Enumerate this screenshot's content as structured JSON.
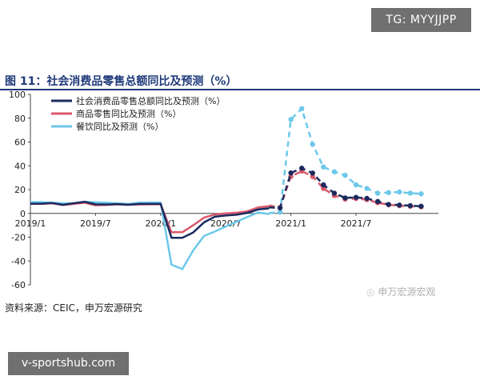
{
  "overlays": {
    "tg_handle": "TG: MYYJJPP",
    "site_handle": "v-sportshub.com",
    "wechat_watermark": "申万宏源宏观"
  },
  "source_note": "资料来源：CEIC，申万宏源研究",
  "colors": {
    "title": "#1f3a7a",
    "retail_total": "#1b2a5e",
    "goods": "#d9596a",
    "catering": "#6cc8ea"
  },
  "chart_data": {
    "type": "line",
    "title": "图 11：社会消费品零售总额同比及预测（%）",
    "x_ticks": [
      "2019/1",
      "2019/7",
      "2020/1",
      "2020/7",
      "2021/1",
      "2021/7"
    ],
    "x_tick_index": [
      0,
      6,
      12,
      18,
      24,
      30
    ],
    "ylim": [
      -60,
      100
    ],
    "y_ticks": [
      -60,
      -40,
      -20,
      0,
      20,
      40,
      60,
      80,
      100
    ],
    "legend_position": "top-left",
    "grid": false,
    "forecast_start_index": 22,
    "series": [
      {
        "name": "社会消费品零售总额同比及预测（%）",
        "values": [
          8.2,
          8.2,
          8.7,
          7.2,
          8.6,
          9.8,
          7.6,
          7.5,
          7.8,
          7.2,
          8.0,
          8.0,
          8.0,
          -20.5,
          -20.5,
          -16.0,
          -7.5,
          -2.8,
          -1.8,
          -1.1,
          0.5,
          3.3,
          4.3,
          5.0,
          4.6,
          34.0,
          38.0,
          33.9,
          24.0,
          17.0,
          13.0,
          13.5,
          12.6,
          10.0,
          7.5,
          7.0,
          6.5,
          6.0
        ],
        "forecast_values": [
          5.0,
          4.6,
          34.0,
          38.0,
          33.9,
          24.0,
          17.0,
          13.0,
          13.5,
          12.6,
          10.0,
          7.5,
          7.0,
          6.5,
          6.0
        ]
      },
      {
        "name": "商品零售同比及预测（%）",
        "values": [
          8.0,
          8.0,
          8.5,
          7.0,
          8.0,
          9.0,
          6.8,
          7.1,
          7.6,
          7.4,
          7.5,
          7.6,
          7.6,
          -15.8,
          -15.8,
          -10.0,
          -3.5,
          -0.9,
          0.0,
          0.6,
          1.8,
          5.1,
          6.0,
          6.6,
          5.0,
          31.0,
          35.5,
          31.0,
          21.0,
          15.0,
          12.0,
          12.5,
          11.6,
          9.0,
          7.2,
          6.5,
          6.0,
          5.5
        ],
        "forecast_values": [
          6.6,
          5.0,
          31.0,
          35.5,
          31.0,
          21.0,
          15.0,
          12.0,
          12.5,
          11.6,
          9.0,
          7.2,
          6.5,
          6.0,
          5.5
        ]
      },
      {
        "name": "餐饮同比及预测（%）",
        "values": [
          9.5,
          9.5,
          9.0,
          8.5,
          8.3,
          9.7,
          9.3,
          9.0,
          8.5,
          8.0,
          9.0,
          9.2,
          9.2,
          -43.1,
          -46.8,
          -31.1,
          -18.9,
          -15.2,
          -11.0,
          -7.0,
          -2.9,
          0.8,
          -0.6,
          0.3,
          1.0,
          79.0,
          88.0,
          58.0,
          39.0,
          35.0,
          32.0,
          24.0,
          21.0,
          17.0,
          17.5,
          18.0,
          17.0,
          16.5
        ],
        "forecast_values": [
          0.3,
          1.0,
          79.0,
          88.0,
          58.0,
          39.0,
          35.0,
          32.0,
          24.0,
          21.0,
          17.0,
          17.5,
          18.0,
          17.0,
          16.5
        ]
      }
    ]
  }
}
